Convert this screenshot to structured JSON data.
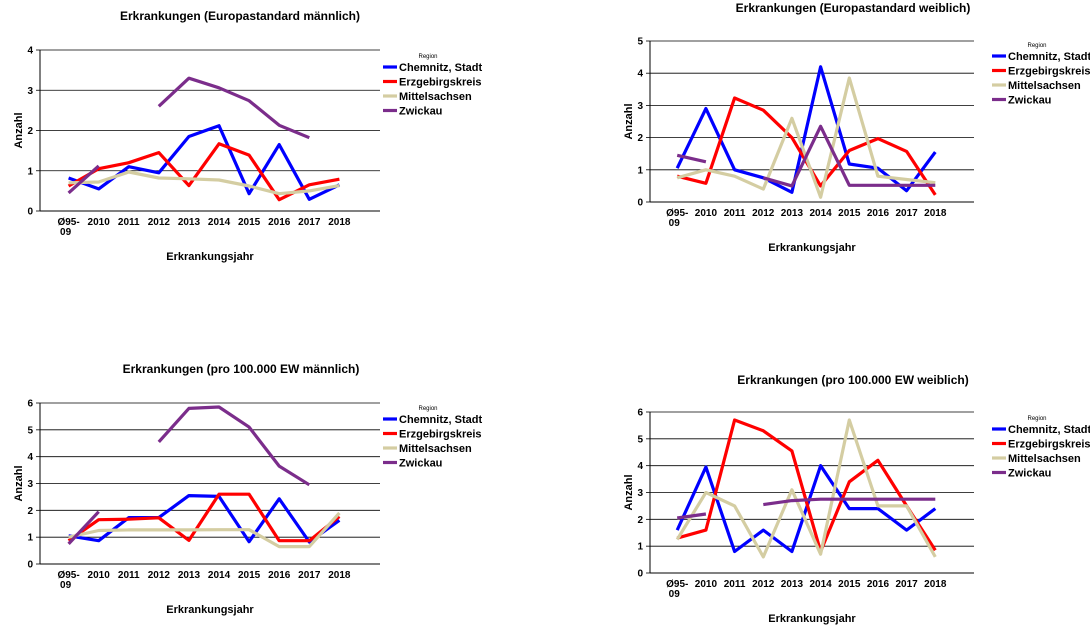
{
  "chart_data": [
    {
      "type": "line",
      "title": "Erkrankungen (Europastandard männlich)",
      "xlabel": "Erkrankungsjahr",
      "ylabel": "Anzahl",
      "ylim": [
        0,
        4
      ],
      "yticks": [
        0,
        1,
        2,
        3,
        4
      ],
      "categories": [
        "Ø95-\n09",
        "2010",
        "2011",
        "2012",
        "2013",
        "2014",
        "2015",
        "2016",
        "2017",
        "2018"
      ],
      "grid": true,
      "legend_title": "Region",
      "legend_position": "right",
      "series": [
        {
          "name": "Chemnitz, Stadt",
          "color": "#0000ff",
          "values": [
            0.82,
            0.55,
            1.1,
            0.95,
            1.85,
            2.12,
            0.43,
            1.65,
            0.29,
            0.65
          ]
        },
        {
          "name": "Erzgebirgskreis",
          "color": "#ff0000",
          "values": [
            0.62,
            1.05,
            1.2,
            1.45,
            0.63,
            1.67,
            1.39,
            0.28,
            0.65,
            0.79
          ]
        },
        {
          "name": "Mittelsachsen",
          "color": "#d4cda2",
          "values": [
            0.7,
            0.72,
            0.97,
            0.82,
            0.8,
            0.77,
            0.62,
            0.43,
            0.5,
            0.63
          ]
        },
        {
          "name": "Zwickau",
          "color": "#7b2d8b",
          "values": [
            0.45,
            1.12,
            null,
            2.6,
            3.3,
            3.06,
            2.74,
            2.13,
            1.82,
            null
          ]
        }
      ]
    },
    {
      "type": "line",
      "title": "Erkrankungen (Europastandard weiblich)",
      "xlabel": "Erkrankungsjahr",
      "ylabel": "Anzahl",
      "ylim": [
        0,
        5
      ],
      "yticks": [
        0,
        1,
        2,
        3,
        4,
        5
      ],
      "categories": [
        "Ø95-\n09",
        "2010",
        "2011",
        "2012",
        "2013",
        "2014",
        "2015",
        "2016",
        "2017",
        "2018"
      ],
      "grid": true,
      "legend_title": "Region",
      "legend_position": "right",
      "series": [
        {
          "name": "Chemnitz, Stadt",
          "color": "#0000ff",
          "values": [
            1.05,
            2.9,
            1.0,
            0.75,
            0.3,
            4.2,
            1.18,
            1.05,
            0.35,
            1.55
          ]
        },
        {
          "name": "Erzgebirgskreis",
          "color": "#ff0000",
          "values": [
            0.8,
            0.58,
            3.23,
            2.85,
            2.0,
            0.5,
            1.6,
            1.97,
            1.57,
            0.22
          ]
        },
        {
          "name": "Mittelsachsen",
          "color": "#d4cda2",
          "values": [
            0.75,
            1.0,
            0.8,
            0.4,
            2.6,
            0.15,
            3.85,
            0.8,
            0.7,
            0.6
          ]
        },
        {
          "name": "Zwickau",
          "color": "#7b2d8b",
          "values": [
            1.45,
            1.25,
            null,
            0.75,
            0.5,
            2.35,
            0.52,
            0.52,
            0.52,
            0.52
          ]
        }
      ]
    },
    {
      "type": "line",
      "title": "Erkrankungen (pro 100.000 EW männlich)",
      "xlabel": "Erkrankungsjahr",
      "ylabel": "Anzahl",
      "ylim": [
        0,
        6
      ],
      "yticks": [
        0,
        1,
        2,
        3,
        4,
        5,
        6
      ],
      "categories": [
        "Ø95-\n09",
        "2010",
        "2011",
        "2012",
        "2013",
        "2014",
        "2015",
        "2016",
        "2017",
        "2018"
      ],
      "grid": true,
      "legend_title": "Region",
      "legend_position": "right",
      "series": [
        {
          "name": "Chemnitz, Stadt",
          "color": "#0000ff",
          "values": [
            1.05,
            0.87,
            1.73,
            1.73,
            2.55,
            2.52,
            0.83,
            2.43,
            0.82,
            1.63
          ]
        },
        {
          "name": "Erzgebirgskreis",
          "color": "#ff0000",
          "values": [
            0.87,
            1.65,
            1.67,
            1.72,
            0.88,
            2.6,
            2.6,
            0.87,
            0.87,
            1.77
          ]
        },
        {
          "name": "Mittelsachsen",
          "color": "#d4cda2",
          "values": [
            1.0,
            1.25,
            1.27,
            1.27,
            1.27,
            1.28,
            1.28,
            0.65,
            0.65,
            1.9
          ]
        },
        {
          "name": "Zwickau",
          "color": "#7b2d8b",
          "values": [
            0.75,
            1.95,
            null,
            4.55,
            5.8,
            5.85,
            5.1,
            3.65,
            2.95,
            null
          ]
        }
      ]
    },
    {
      "type": "line",
      "title": "Erkrankungen (pro 100.000 EW weiblich)",
      "xlabel": "Erkrankungsjahr",
      "ylabel": "Anzahl",
      "ylim": [
        0,
        6
      ],
      "yticks": [
        0,
        1,
        2,
        3,
        4,
        5,
        6
      ],
      "categories": [
        "Ø95-\n09",
        "2010",
        "2011",
        "2012",
        "2013",
        "2014",
        "2015",
        "2016",
        "2017",
        "2018"
      ],
      "grid": true,
      "legend_title": "Region",
      "legend_position": "right",
      "series": [
        {
          "name": "Chemnitz, Stadt",
          "color": "#0000ff",
          "values": [
            1.6,
            3.95,
            0.8,
            1.6,
            0.8,
            4.0,
            2.4,
            2.4,
            1.6,
            2.4
          ]
        },
        {
          "name": "Erzgebirgskreis",
          "color": "#ff0000",
          "values": [
            1.3,
            1.6,
            5.7,
            5.3,
            4.55,
            0.8,
            3.4,
            4.2,
            2.5,
            0.85
          ]
        },
        {
          "name": "Mittelsachsen",
          "color": "#d4cda2",
          "values": [
            1.25,
            3.0,
            2.5,
            0.6,
            3.1,
            0.7,
            5.7,
            2.5,
            2.5,
            0.6
          ]
        },
        {
          "name": "Zwickau",
          "color": "#7b2d8b",
          "values": [
            2.05,
            2.2,
            null,
            2.55,
            2.7,
            2.75,
            2.75,
            2.75,
            2.75,
            2.75
          ]
        }
      ]
    }
  ]
}
